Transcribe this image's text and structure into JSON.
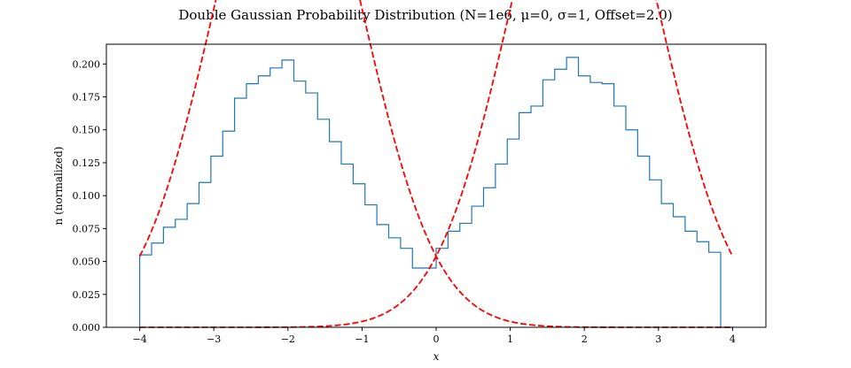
{
  "chart_data": {
    "type": "histogram",
    "title": "Double Gaussian Probability Distribution (N=1e6, μ=0, σ=1, Offset=2.0)",
    "xlabel": "x",
    "ylabel": "n (normalized)",
    "xlim": [
      -4.45,
      4.45
    ],
    "ylim": [
      0,
      0.215
    ],
    "xticks": [
      -4,
      -3,
      -2,
      -1,
      0,
      1,
      2,
      3,
      4
    ],
    "xtick_labels": [
      "−4",
      "−3",
      "−2",
      "−1",
      "0",
      "1",
      "2",
      "3",
      "4"
    ],
    "yticks": [
      0,
      0.025,
      0.05,
      0.075,
      0.1,
      0.125,
      0.15,
      0.175,
      0.2
    ],
    "ytick_labels": [
      "0.000",
      "0.025",
      "0.050",
      "0.075",
      "0.100",
      "0.125",
      "0.150",
      "0.175",
      "0.200"
    ],
    "histogram": {
      "color": "#1f77b4",
      "bin_start": -4,
      "bin_width": 0.16,
      "counts": [
        0.055,
        0.064,
        0.076,
        0.082,
        0.094,
        0.11,
        0.13,
        0.149,
        0.174,
        0.185,
        0.191,
        0.197,
        0.203,
        0.187,
        0.178,
        0.158,
        0.141,
        0.124,
        0.109,
        0.093,
        0.078,
        0.068,
        0.06,
        0.045,
        0.045,
        0.06,
        0.073,
        0.079,
        0.092,
        0.106,
        0.124,
        0.143,
        0.163,
        0.168,
        0.188,
        0.196,
        0.205,
        0.191,
        0.186,
        0.185,
        0.168,
        0.15,
        0.13,
        0.112,
        0.094,
        0.084,
        0.073,
        0.065,
        0.057,
        0.0
      ]
    },
    "curves": [
      {
        "type": "gaussian",
        "mu": -2,
        "sigma": 1,
        "color": "#ff0000",
        "style": "dashed",
        "x_range": [
          -4,
          4
        ]
      },
      {
        "type": "gaussian",
        "mu": 2,
        "sigma": 1,
        "color": "#ff0000",
        "style": "dashed",
        "x_range": [
          -4,
          4
        ]
      }
    ],
    "grid": false,
    "legend": "none"
  }
}
